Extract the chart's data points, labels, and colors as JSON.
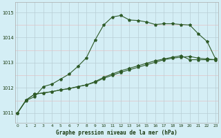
{
  "title": "Graphe pression niveau de la mer (hPa)",
  "background_color": "#d4eef5",
  "grid_color": "#c8dde5",
  "line_color": "#2d5a27",
  "x_ticks": [
    0,
    1,
    2,
    3,
    4,
    5,
    6,
    7,
    8,
    9,
    10,
    11,
    12,
    13,
    14,
    15,
    16,
    17,
    18,
    19,
    20,
    21,
    22,
    23
  ],
  "y_ticks": [
    1011,
    1012,
    1013,
    1014,
    1015
  ],
  "ylim": [
    1010.6,
    1015.4
  ],
  "xlim": [
    -0.3,
    23.3
  ],
  "series1": [
    1011.0,
    1011.5,
    1011.65,
    1012.05,
    1012.15,
    1012.35,
    1012.55,
    1012.85,
    1013.2,
    1013.9,
    1014.5,
    1014.82,
    1014.88,
    1014.7,
    1014.68,
    1014.62,
    1014.52,
    1014.55,
    1014.55,
    1014.52,
    1014.5,
    1014.15,
    1013.85,
    1013.15
  ],
  "series2": [
    1011.0,
    1011.52,
    1011.75,
    1011.8,
    1011.85,
    1011.92,
    1011.97,
    1012.05,
    1012.12,
    1012.22,
    1012.38,
    1012.5,
    1012.62,
    1012.72,
    1012.82,
    1012.92,
    1013.02,
    1013.12,
    1013.18,
    1013.22,
    1013.25,
    1013.18,
    1013.15,
    1013.12
  ],
  "series3": [
    1011.0,
    1011.52,
    1011.75,
    1011.8,
    1011.85,
    1011.92,
    1011.97,
    1012.05,
    1012.12,
    1012.25,
    1012.42,
    1012.55,
    1012.68,
    1012.78,
    1012.88,
    1012.98,
    1013.08,
    1013.15,
    1013.22,
    1013.28,
    1013.12,
    1013.12,
    1013.12,
    1013.12
  ]
}
